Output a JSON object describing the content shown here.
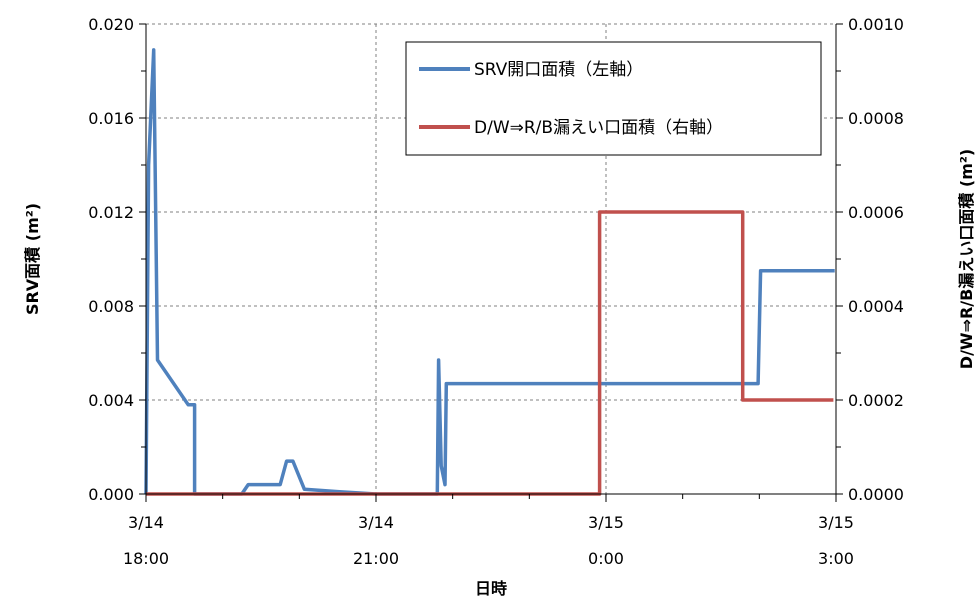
{
  "chart_data": {
    "type": "line",
    "xlabel": "日時",
    "ylabel_left": "SRV面積 (m²)",
    "ylabel_right": "D/W⇒R/B漏えい口面積 (m²)",
    "x_tick_labels": [
      {
        "date": "3/14",
        "time": "18:00"
      },
      {
        "date": "3/14",
        "time": "21:00"
      },
      {
        "date": "3/15",
        "time": "0:00"
      },
      {
        "date": "3/15",
        "time": "3:00"
      }
    ],
    "xlim": [
      "3/14 18:00",
      "3/15 3:00"
    ],
    "x_minor_step_hours": 1,
    "ylim_left": [
      0,
      0.02
    ],
    "ylim_right": [
      0,
      0.001
    ],
    "y_tick_labels_left": [
      "0.000",
      "0.004",
      "0.008",
      "0.012",
      "0.016",
      "0.020"
    ],
    "y_tick_labels_right": [
      "0.0000",
      "0.0002",
      "0.0004",
      "0.0006",
      "0.0008",
      "0.0010"
    ],
    "grid": true,
    "legend_position": "top-right",
    "series": [
      {
        "name": "SRV開口面積（左軸）",
        "axis": "left",
        "color": "#4f81bd",
        "points": [
          [
            "3/14 18:00",
            0.0
          ],
          [
            "3/14 18:02",
            0.014
          ],
          [
            "3/14 18:06",
            0.0189
          ],
          [
            "3/14 18:09",
            0.0057
          ],
          [
            "3/14 18:33",
            0.0038
          ],
          [
            "3/14 18:38",
            0.0038
          ],
          [
            "3/14 18:38",
            0.0
          ],
          [
            "3/14 19:15",
            0.0
          ],
          [
            "3/14 19:20",
            0.0004
          ],
          [
            "3/14 19:45",
            0.0004
          ],
          [
            "3/14 19:50",
            0.0014
          ],
          [
            "3/14 19:55",
            0.0014
          ],
          [
            "3/14 20:04",
            0.0002
          ],
          [
            "3/14 20:30",
            0.0001
          ],
          [
            "3/14 21:00",
            0.0
          ],
          [
            "3/14 21:48",
            0.0
          ],
          [
            "3/14 21:49",
            0.0057
          ],
          [
            "3/14 21:51",
            0.0012
          ],
          [
            "3/14 21:54",
            0.0004
          ],
          [
            "3/14 21:55",
            0.0047
          ],
          [
            "3/15 1:59",
            0.0047
          ],
          [
            "3/15 2:01",
            0.0095
          ],
          [
            "3/15 2:59",
            0.0095
          ]
        ]
      },
      {
        "name": "D/W⇒R/B漏えい口面積（右軸）",
        "axis": "right",
        "color": "#c0504d",
        "points": [
          [
            "3/14 18:00",
            0.0
          ],
          [
            "3/14 23:55",
            0.0
          ],
          [
            "3/14 23:55",
            0.0006
          ],
          [
            "3/15 1:47",
            0.0006
          ],
          [
            "3/15 1:47",
            0.0002
          ],
          [
            "3/15 2:58",
            0.0002
          ]
        ]
      }
    ]
  }
}
